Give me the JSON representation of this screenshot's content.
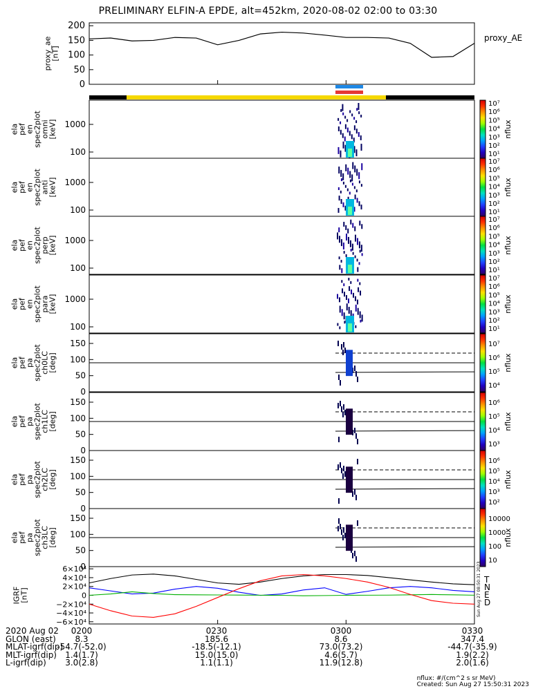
{
  "title": "PRELIMINARY ELFIN-A EPDE, alt=452km, 2020-08-02 02:00 to 03:30",
  "panels": {
    "ae": {
      "ylabel_lines": [
        "proxy_ae",
        "[nT]"
      ],
      "legend": "proxy_AE",
      "yticks": [
        "200",
        "150",
        "100",
        "50",
        "0"
      ]
    },
    "spec": [
      {
        "ylabel_lines": [
          "ela",
          "pef",
          "en",
          "spec2plot",
          "omni",
          "[keV]"
        ],
        "cblabel": "nflux"
      },
      {
        "ylabel_lines": [
          "ela",
          "pef",
          "en",
          "spec2plot",
          "anti",
          "[keV]"
        ],
        "cblabel": "nflux"
      },
      {
        "ylabel_lines": [
          "ela",
          "pef",
          "en",
          "spec2plot",
          "perp",
          "[keV]"
        ],
        "cblabel": "nflux"
      },
      {
        "ylabel_lines": [
          "ela",
          "pef",
          "en",
          "spec2plot",
          "para",
          "[keV]"
        ],
        "cblabel": "nflux"
      }
    ],
    "spec_yticks": [
      "1000",
      "100"
    ],
    "spec_cbticks": [
      "10⁷",
      "10⁶",
      "10⁵",
      "10⁴",
      "10³",
      "10²",
      "10¹"
    ],
    "pa": [
      {
        "ylabel_lines": [
          "ela",
          "pef",
          "pa",
          "spec2plot",
          "ch0LC",
          "[deg]"
        ],
        "cblabel": "nflux",
        "cbticks": [
          "10⁷",
          "10⁶",
          "10⁵",
          "10⁴"
        ]
      },
      {
        "ylabel_lines": [
          "ela",
          "pef",
          "pa",
          "spec2plot",
          "ch1LC",
          "[deg]"
        ],
        "cblabel": "nflux",
        "cbticks": [
          "10⁶",
          "10⁵",
          "10⁴",
          "10³"
        ]
      },
      {
        "ylabel_lines": [
          "ela",
          "pef",
          "pa",
          "spec2plot",
          "ch2LC",
          "[deg]"
        ],
        "cblabel": "nflux",
        "cbticks": [
          "10⁶",
          "10⁵",
          "10⁴",
          "10³",
          "10²"
        ]
      },
      {
        "ylabel_lines": [
          "ela",
          "pef",
          "pa",
          "spec2plot",
          "ch3LC",
          "[deg]"
        ],
        "cblabel": "nflux",
        "cbticks": [
          "10000",
          "1000",
          "100",
          "10"
        ]
      }
    ],
    "pa_yticks": [
      "150",
      "100",
      "50",
      "0"
    ],
    "igrf": {
      "ylabel_lines": [
        "IGRF",
        "[nT]"
      ],
      "yticks": [
        "6×10⁴",
        "4×10⁴",
        "2×10⁴",
        "0",
        "−2×10⁴",
        "−4×10⁴",
        "−6×10⁴"
      ],
      "legend": [
        "T",
        "N",
        "E",
        "D"
      ],
      "stamp": "Sun Aug 27 08:50:31 2023"
    }
  },
  "footer": {
    "rows": [
      {
        "label": "2020 Aug 02",
        "values": [
          "0200",
          "0230",
          "0300",
          "0330"
        ]
      },
      {
        "label": "GLON (east)",
        "values": [
          "8.3",
          "185.6",
          "8.6",
          "347.4"
        ]
      },
      {
        "label": "MLAT-igrf(dip)",
        "values": [
          "-54.7(-52.0)",
          "-18.5(-12.1)",
          "73.0(73.2)",
          "-44.7(-35.9)"
        ]
      },
      {
        "label": "MLT-igrf(dip)",
        "values": [
          "1.4(1.7)",
          "15.0(15.0)",
          "4.6(5.7)",
          "1.9(2.2)"
        ]
      },
      {
        "label": "L-igrf(dip)",
        "values": [
          "3.0(2.8)",
          "1.1(1.1)",
          "11.9(12.8)",
          "2.0(1.6)"
        ]
      }
    ],
    "units_note": "nflux: #/(cm^2 s sr MeV)",
    "created": "Created: Sun Aug 27 15:50:31 2023"
  },
  "colors": {
    "sunlit_bar": "#f5d800",
    "shadow_bar": "#000000",
    "marker_blue": "#1e88e5",
    "marker_red": "#e53935",
    "T": "#000000",
    "N": "#0000ff",
    "E": "#00b000",
    "D": "#ff0000"
  },
  "chart_data": [
    {
      "type": "line",
      "title": "PRELIMINARY ELFIN-A EPDE, alt=452km, 2020-08-02 02:00 to 03:30",
      "ylabel": "proxy_ae [nT]",
      "ylim": [
        0,
        210
      ],
      "x": [
        "0200",
        "0205",
        "0210",
        "0215",
        "0220",
        "0225",
        "0230",
        "0235",
        "0240",
        "0245",
        "0250",
        "0255",
        "0300",
        "0305",
        "0310",
        "0315",
        "0320",
        "0325",
        "0330"
      ],
      "series": [
        {
          "name": "proxy_AE",
          "values": [
            155,
            158,
            148,
            150,
            160,
            158,
            135,
            150,
            172,
            178,
            175,
            168,
            160,
            160,
            158,
            140,
            92,
            95,
            140
          ]
        }
      ]
    },
    {
      "type": "heatmap",
      "ylabel": "ela pef en spec2plot omni [keV]",
      "yscale": "log",
      "ylim": [
        50,
        8000
      ],
      "active_time": [
        "0255",
        "0300"
      ],
      "colorbar": "nflux 10¹–10⁷"
    },
    {
      "type": "heatmap",
      "ylabel": "ela pef en spec2plot anti [keV]",
      "yscale": "log",
      "ylim": [
        50,
        8000
      ],
      "active_time": [
        "0255",
        "0300"
      ]
    },
    {
      "type": "heatmap",
      "ylabel": "ela pef en spec2plot perp [keV]",
      "yscale": "log",
      "ylim": [
        50,
        8000
      ],
      "active_time": [
        "0255",
        "0300"
      ]
    },
    {
      "type": "heatmap",
      "ylabel": "ela pef en spec2plot para [keV]",
      "yscale": "log",
      "ylim": [
        50,
        8000
      ],
      "active_time": [
        "0255",
        "0300"
      ]
    },
    {
      "type": "line",
      "ylabel": "IGRF [nT]",
      "ylim": [
        -60000,
        60000
      ],
      "x": [
        "0200",
        "0205",
        "0210",
        "0215",
        "0220",
        "0225",
        "0230",
        "0235",
        "0240",
        "0245",
        "0250",
        "0255",
        "0300",
        "0305",
        "0310",
        "0315",
        "0320",
        "0325",
        "0330"
      ],
      "series": [
        {
          "name": "T",
          "values": [
            28000,
            38000,
            46000,
            48000,
            44000,
            36000,
            28000,
            25000,
            30000,
            38000,
            44000,
            47000,
            47000,
            45000,
            40000,
            35000,
            30000,
            26000,
            24000
          ]
        },
        {
          "name": "N",
          "values": [
            17000,
            10000,
            3000,
            5000,
            14000,
            20000,
            16000,
            7000,
            -200,
            3000,
            12000,
            17000,
            2000,
            9000,
            17000,
            20000,
            17000,
            11000,
            8000
          ]
        },
        {
          "name": "E",
          "values": [
            0,
            3000,
            8000,
            4000,
            1500,
            1000,
            800,
            500,
            200,
            0,
            -1000,
            -600,
            0,
            200,
            400,
            1000,
            1800,
            1000,
            200
          ]
        },
        {
          "name": "D",
          "values": [
            -20000,
            -35000,
            -47000,
            -50000,
            -42000,
            -25000,
            -5000,
            15000,
            33000,
            44000,
            47000,
            44000,
            38000,
            30000,
            18000,
            2000,
            -12000,
            -18000,
            -20000
          ]
        }
      ]
    }
  ]
}
